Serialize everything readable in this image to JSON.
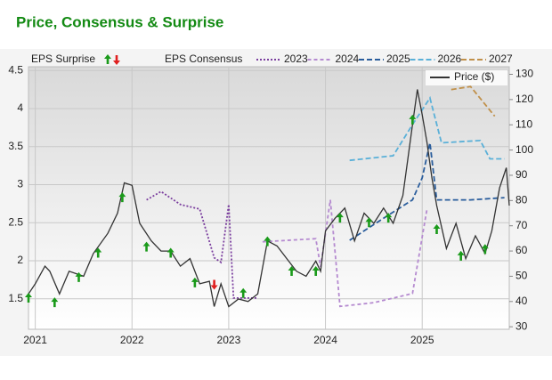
{
  "chart_data": {
    "type": "line",
    "title": "Price, Consensus & Surprise",
    "surprise_label": "EPS Surprise",
    "consensus_label": "EPS Consensus",
    "xlim": [
      2020.93,
      2025.9
    ],
    "xticks": [
      2021,
      2022,
      2023,
      2024,
      2025
    ],
    "ylim": [
      1.1,
      4.55
    ],
    "yticks": [
      1.5,
      2,
      2.5,
      3,
      3.5,
      4,
      4.5
    ],
    "y2lim": [
      29,
      133
    ],
    "y2ticks": [
      30,
      40,
      50,
      60,
      70,
      80,
      90,
      100,
      110,
      120,
      130
    ],
    "grid": true,
    "series": [
      {
        "name": "2023",
        "color": "#7a3d9e",
        "dash": "2,2",
        "x": [
          2022.15,
          2022.3,
          2022.5,
          2022.7,
          2022.85,
          2022.92,
          2023.0,
          2023.05,
          2023.3
        ],
        "values": [
          2.8,
          2.91,
          2.74,
          2.68,
          2.04,
          1.98,
          2.74,
          1.51,
          1.51
        ]
      },
      {
        "name": "2024",
        "color": "#b58ad0",
        "dash": "4,3",
        "x": [
          2023.35,
          2023.9,
          2023.95,
          2024.05,
          2024.15,
          2024.5,
          2024.9,
          2025.05
        ],
        "values": [
          2.25,
          2.29,
          1.92,
          2.8,
          1.4,
          1.45,
          1.57,
          2.68
        ]
      },
      {
        "name": "2025",
        "color": "#2a5d9c",
        "dash": "6,3",
        "x": [
          2024.25,
          2024.6,
          2024.9,
          2025.0,
          2025.08,
          2025.15,
          2025.5,
          2025.85
        ],
        "values": [
          2.27,
          2.56,
          2.8,
          3.09,
          3.55,
          2.8,
          2.8,
          2.83
        ]
      },
      {
        "name": "2026",
        "color": "#5ab0d8",
        "dash": "6,3",
        "x": [
          2024.25,
          2024.7,
          2024.9,
          2025.08,
          2025.2,
          2025.6,
          2025.7,
          2025.85
        ],
        "values": [
          3.32,
          3.38,
          3.79,
          4.14,
          3.55,
          3.58,
          3.34,
          3.34
        ]
      },
      {
        "name": "2027",
        "color": "#c0904a",
        "dash": "6,3",
        "x": [
          2025.3,
          2025.5,
          2025.75
        ],
        "values": [
          4.25,
          4.29,
          3.9
        ]
      },
      {
        "name": "Price ($)",
        "color": "#333333",
        "axis": "y2",
        "x": [
          2020.93,
          2021.0,
          2021.1,
          2021.15,
          2021.25,
          2021.35,
          2021.5,
          2021.6,
          2021.75,
          2021.85,
          2021.92,
          2022.0,
          2022.08,
          2022.2,
          2022.3,
          2022.4,
          2022.5,
          2022.6,
          2022.7,
          2022.8,
          2022.85,
          2022.92,
          2023.0,
          2023.1,
          2023.2,
          2023.3,
          2023.4,
          2023.5,
          2023.6,
          2023.7,
          2023.8,
          2023.9,
          2023.95,
          2024.0,
          2024.1,
          2024.2,
          2024.3,
          2024.4,
          2024.5,
          2024.6,
          2024.7,
          2024.8,
          2024.85,
          2024.9,
          2024.95,
          2025.0,
          2025.05,
          2025.1,
          2025.15,
          2025.25,
          2025.35,
          2025.45,
          2025.55,
          2025.65,
          2025.72,
          2025.8,
          2025.87,
          2025.9
        ],
        "values": [
          43,
          47,
          54,
          52,
          43,
          52,
          50,
          59,
          67,
          75,
          87,
          86,
          71,
          64,
          60,
          60,
          54,
          57,
          47,
          48,
          38,
          47,
          38,
          41,
          40,
          43,
          64,
          62,
          57,
          52,
          50,
          56,
          52,
          68,
          73,
          77,
          64,
          75,
          71,
          77,
          71,
          82,
          96,
          110,
          124,
          114,
          103,
          89,
          78,
          61,
          71,
          57,
          66,
          59,
          68,
          85,
          93,
          78
        ]
      }
    ],
    "surprise": {
      "up_color": "#1a9a1a",
      "down_color": "#e02020",
      "x": [
        2020.93,
        2021.2,
        2021.45,
        2021.65,
        2021.9,
        2022.15,
        2022.4,
        2022.65,
        2022.85,
        2023.15,
        2023.4,
        2023.65,
        2023.9,
        2024.15,
        2024.45,
        2024.65,
        2024.9,
        2025.15,
        2025.4,
        2025.65
      ],
      "values": [
        1.51,
        1.45,
        1.78,
        2.1,
        2.83,
        2.18,
        2.1,
        1.71,
        1.69,
        1.57,
        2.25,
        1.86,
        1.86,
        2.56,
        2.5,
        2.56,
        3.85,
        2.41,
        2.06,
        2.15
      ],
      "direction": [
        "up",
        "up",
        "up",
        "up",
        "up",
        "up",
        "up",
        "up",
        "down",
        "up",
        "up",
        "up",
        "up",
        "up",
        "up",
        "up",
        "up",
        "up",
        "up",
        "up"
      ]
    }
  }
}
